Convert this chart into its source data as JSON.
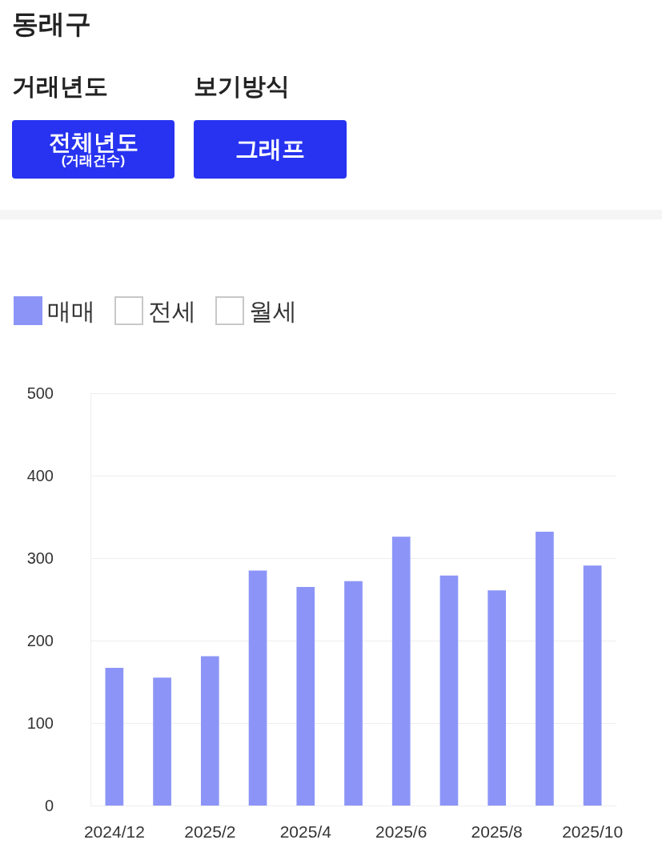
{
  "chart_data": {
    "type": "bar",
    "title": "동래구",
    "annotations": [
      "거래년도",
      "보기방식",
      "전체년도",
      "(거래건수)",
      "그래프"
    ],
    "categories": [
      "2024/12",
      null,
      "2025/2",
      null,
      "2025/4",
      null,
      "2025/6",
      null,
      "2025/8",
      null,
      "2025/10"
    ],
    "series": [
      {
        "name": "매매",
        "color": "#8c95f7",
        "values": [
          167,
          155,
          181,
          285,
          265,
          272,
          326,
          279,
          261,
          332,
          291
        ]
      },
      {
        "name": "전세",
        "values": [
          null,
          null,
          null,
          null,
          null,
          null,
          null,
          null,
          null,
          null,
          null
        ]
      },
      {
        "name": "월세",
        "values": [
          null,
          null,
          null,
          null,
          null,
          null,
          null,
          null,
          null,
          null,
          null
        ]
      }
    ],
    "ylim": [
      0,
      500
    ],
    "yticks": [
      0,
      100,
      200,
      300,
      400,
      500
    ],
    "grid": "y",
    "legend": "top left"
  }
}
